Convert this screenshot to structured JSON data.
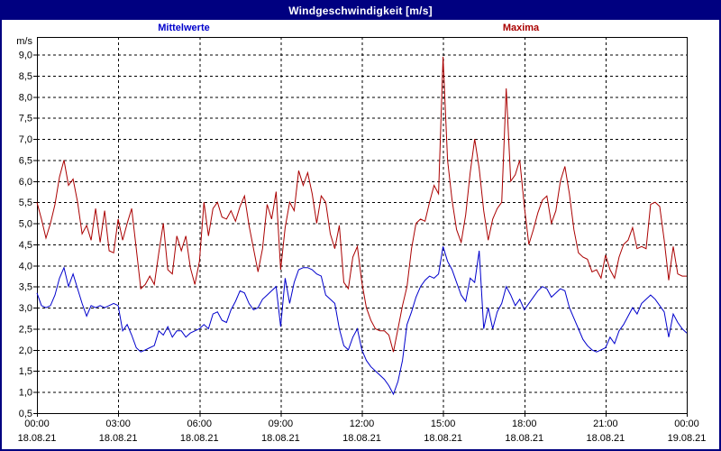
{
  "window": {
    "title": "Windgeschwindigkeit [m/s]"
  },
  "legend": {
    "mean_label": "Mittelwerte",
    "max_label": "Maxima"
  },
  "colors": {
    "titlebar_bg": "#000080",
    "titlebar_text": "#ffffff",
    "window_border": "#000080",
    "plot_bg": "#ffffff",
    "grid": "#000000",
    "mean_line": "#0000cc",
    "max_line": "#aa0000"
  },
  "y_axis": {
    "unit": "m/s",
    "min": 0.5,
    "max": 9.0,
    "tick_step": 0.5,
    "decimal_separator": ","
  },
  "x_axis": {
    "tick_interval_hours": 3,
    "ticks": [
      {
        "time": "00:00",
        "date": "18.08.21"
      },
      {
        "time": "03:00",
        "date": "18.08.21"
      },
      {
        "time": "06:00",
        "date": "18.08.21"
      },
      {
        "time": "09:00",
        "date": "18.08.21"
      },
      {
        "time": "12:00",
        "date": "18.08.21"
      },
      {
        "time": "15:00",
        "date": "18.08.21"
      },
      {
        "time": "18:00",
        "date": "18.08.21"
      },
      {
        "time": "21:00",
        "date": "18.08.21"
      },
      {
        "time": "00:00",
        "date": "19.08.21"
      }
    ]
  },
  "chart_data": {
    "type": "line",
    "title": "Windgeschwindigkeit [m/s]",
    "x_start_hour": 0,
    "x_end_hour": 24,
    "x_interval_minutes": 10,
    "ylim": [
      0.5,
      9.0
    ],
    "grid": true,
    "legend_position": "top",
    "series": [
      {
        "name": "Maxima",
        "color": "#aa0000",
        "values": [
          5.5,
          5.1,
          4.65,
          5.0,
          5.45,
          6.1,
          6.5,
          5.9,
          6.05,
          5.5,
          4.75,
          4.95,
          4.6,
          5.35,
          4.55,
          5.3,
          4.35,
          4.3,
          5.1,
          4.6,
          5.0,
          5.35,
          4.4,
          3.45,
          3.55,
          3.75,
          3.55,
          4.3,
          5.0,
          3.9,
          3.8,
          4.7,
          4.35,
          4.7,
          3.95,
          3.55,
          4.1,
          5.5,
          4.7,
          5.35,
          5.5,
          5.15,
          5.1,
          5.3,
          5.05,
          5.4,
          5.65,
          4.95,
          4.4,
          3.85,
          4.4,
          5.45,
          5.1,
          5.75,
          3.9,
          4.9,
          5.5,
          5.3,
          6.25,
          5.9,
          6.2,
          5.7,
          5.0,
          5.65,
          5.5,
          4.75,
          4.4,
          4.95,
          3.6,
          3.45,
          4.2,
          4.45,
          3.6,
          3.0,
          2.7,
          2.5,
          2.45,
          2.45,
          2.35,
          1.95,
          2.5,
          3.05,
          3.5,
          4.4,
          5.0,
          5.1,
          5.05,
          5.5,
          5.9,
          5.7,
          8.95,
          6.5,
          5.55,
          4.85,
          4.55,
          5.2,
          6.2,
          7.0,
          6.3,
          5.3,
          4.6,
          5.1,
          5.35,
          5.5,
          8.2,
          6.0,
          6.15,
          6.5,
          5.4,
          4.5,
          4.85,
          5.25,
          5.55,
          5.65,
          5.0,
          5.3,
          6.0,
          6.35,
          5.7,
          4.85,
          4.3,
          4.2,
          4.15,
          3.85,
          3.9,
          3.7,
          4.25,
          3.9,
          3.7,
          4.2,
          4.5,
          4.6,
          4.9,
          4.4,
          4.45,
          4.4,
          5.45,
          5.5,
          5.4,
          4.6,
          3.65,
          4.45,
          3.8,
          3.75,
          3.75
        ]
      },
      {
        "name": "Mittelwerte",
        "color": "#0000cc",
        "values": [
          3.35,
          3.05,
          3.0,
          3.05,
          3.3,
          3.7,
          3.95,
          3.5,
          3.8,
          3.45,
          3.1,
          2.8,
          3.05,
          3.0,
          3.05,
          3.0,
          3.05,
          3.1,
          3.05,
          2.45,
          2.6,
          2.35,
          2.05,
          1.95,
          2.0,
          2.05,
          2.1,
          2.45,
          2.35,
          2.55,
          2.3,
          2.45,
          2.45,
          2.3,
          2.4,
          2.45,
          2.5,
          2.6,
          2.5,
          2.85,
          2.9,
          2.7,
          2.65,
          2.95,
          3.15,
          3.4,
          3.35,
          3.1,
          2.95,
          3.0,
          3.2,
          3.3,
          3.4,
          3.5,
          2.55,
          3.7,
          3.1,
          3.6,
          3.9,
          3.95,
          3.95,
          3.9,
          3.8,
          3.75,
          3.3,
          3.2,
          3.1,
          2.5,
          2.1,
          2.0,
          2.3,
          2.5,
          2.0,
          1.75,
          1.6,
          1.5,
          1.4,
          1.3,
          1.15,
          0.95,
          1.25,
          1.75,
          2.6,
          2.9,
          3.25,
          3.5,
          3.65,
          3.75,
          3.7,
          3.8,
          4.45,
          4.1,
          3.9,
          3.6,
          3.3,
          3.15,
          3.7,
          3.6,
          4.35,
          2.5,
          3.0,
          2.5,
          2.9,
          3.1,
          3.5,
          3.3,
          3.05,
          3.2,
          2.95,
          3.1,
          3.25,
          3.4,
          3.5,
          3.45,
          3.25,
          3.35,
          3.45,
          3.4,
          3.0,
          2.75,
          2.5,
          2.25,
          2.1,
          2.0,
          1.95,
          2.0,
          2.05,
          2.3,
          2.15,
          2.45,
          2.6,
          2.8,
          3.0,
          2.85,
          3.1,
          3.2,
          3.3,
          3.2,
          3.05,
          2.9,
          2.3,
          2.85,
          2.65,
          2.5,
          2.4
        ]
      }
    ]
  }
}
